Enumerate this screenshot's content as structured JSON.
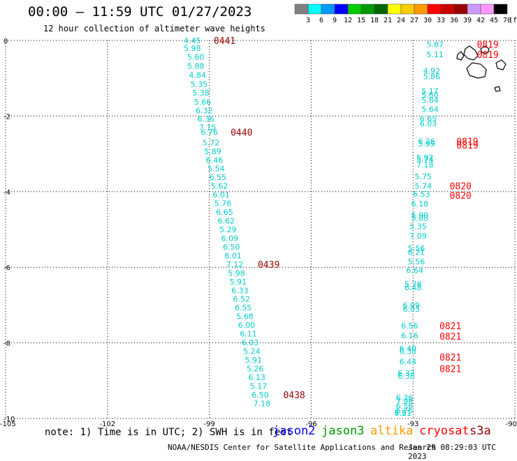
{
  "title": "00:00 – 11:59 UTC 01/27/2023",
  "subtitle": "12 hour collection of altimeter wave heights",
  "colorbar": {
    "colors": [
      "#808080",
      "#00ffff",
      "#0099ff",
      "#0000ff",
      "#00cc00",
      "#009900",
      "#006600",
      "#ffff00",
      "#ffcc00",
      "#ff9900",
      "#ff0000",
      "#cc0000",
      "#990000",
      "#cc99ff",
      "#ff99ff",
      "#000000"
    ],
    "labels": [
      "3",
      "6",
      "9",
      "12",
      "15",
      "18",
      "21",
      "24",
      "27",
      "30",
      "33",
      "36",
      "39",
      "42",
      "45",
      "70",
      "(ft)"
    ]
  },
  "legend": {
    "note": "note: 1) Time is in UTC; 2) SWH is in feet",
    "satellites": [
      {
        "name": "jason2",
        "color": "#0000ff"
      },
      {
        "name": "jason3",
        "color": "#009900"
      },
      {
        "name": "altika",
        "color": "#ff9900"
      },
      {
        "name": "cryosat",
        "color": "#ff0000"
      },
      {
        "name": "s3a",
        "color": "#990000"
      }
    ]
  },
  "credit": "NOAA/NESDIS Center for Satellite Applications and Research",
  "timestamp": "Jan 29 08:29:03 UTC 2023",
  "chart_data": {
    "type": "scatter",
    "xlim": [
      -105,
      -90
    ],
    "ylim": [
      -10,
      0
    ],
    "xticks": [
      "-105",
      "-102",
      "-99",
      "-96",
      "-93",
      "-90"
    ],
    "yticks": [
      "0",
      "-2",
      "-4",
      "-6",
      "-8",
      "-10"
    ],
    "grid": true,
    "value_color": "#00cccc",
    "tracks": [
      {
        "name": "west",
        "points": [
          {
            "x": -99.5,
            "y": 0.0,
            "v": "4.45"
          },
          {
            "x": -99.5,
            "y": -0.2,
            "v": "5.98"
          },
          {
            "x": -99.4,
            "y": -0.43,
            "v": "5.60"
          },
          {
            "x": -99.4,
            "y": -0.67,
            "v": "5.88"
          },
          {
            "x": -99.35,
            "y": -0.91,
            "v": "4.84"
          },
          {
            "x": -99.3,
            "y": -1.15,
            "v": "5.35"
          },
          {
            "x": -99.25,
            "y": -1.38,
            "v": "5.38"
          },
          {
            "x": -99.2,
            "y": -1.62,
            "v": "5.66"
          },
          {
            "x": -99.15,
            "y": -1.85,
            "v": "6.32"
          },
          {
            "x": -99.1,
            "y": -2.08,
            "v": "6.36"
          },
          {
            "x": -99.05,
            "y": -2.3,
            "v": "7.15"
          },
          {
            "x": -99.0,
            "y": -2.43,
            "v": "6.76"
          },
          {
            "x": -98.95,
            "y": -2.7,
            "v": "5.72"
          },
          {
            "x": -98.9,
            "y": -2.93,
            "v": "5.89"
          },
          {
            "x": -98.85,
            "y": -3.16,
            "v": "6.46"
          },
          {
            "x": -98.8,
            "y": -3.39,
            "v": "5.54"
          },
          {
            "x": -98.75,
            "y": -3.62,
            "v": "6.55"
          },
          {
            "x": -98.7,
            "y": -3.85,
            "v": "5.62"
          },
          {
            "x": -98.65,
            "y": -4.08,
            "v": "6.01"
          },
          {
            "x": -98.6,
            "y": -4.31,
            "v": "5.76"
          },
          {
            "x": -98.55,
            "y": -4.54,
            "v": "6.65"
          },
          {
            "x": -98.5,
            "y": -4.77,
            "v": "6.62"
          },
          {
            "x": -98.45,
            "y": -5.0,
            "v": "5.29"
          },
          {
            "x": -98.4,
            "y": -5.23,
            "v": "6.09"
          },
          {
            "x": -98.35,
            "y": -5.46,
            "v": "6.50"
          },
          {
            "x": -98.3,
            "y": -5.69,
            "v": "6.01"
          },
          {
            "x": -98.25,
            "y": -5.92,
            "v": "7.12"
          },
          {
            "x": -98.2,
            "y": -6.15,
            "v": "5.98"
          },
          {
            "x": -98.15,
            "y": -6.38,
            "v": "5.91"
          },
          {
            "x": -98.1,
            "y": -6.61,
            "v": "6.33"
          },
          {
            "x": -98.05,
            "y": -6.84,
            "v": "6.52"
          },
          {
            "x": -98.0,
            "y": -7.07,
            "v": "6.55"
          },
          {
            "x": -97.95,
            "y": -7.3,
            "v": "5.68"
          },
          {
            "x": -97.9,
            "y": -7.53,
            "v": "6.00"
          },
          {
            "x": -97.85,
            "y": -7.76,
            "v": "6.11"
          },
          {
            "x": -97.8,
            "y": -7.99,
            "v": "6.03"
          },
          {
            "x": -97.75,
            "y": -8.22,
            "v": "5.24"
          },
          {
            "x": -97.7,
            "y": -8.45,
            "v": "5.91"
          },
          {
            "x": -97.65,
            "y": -8.68,
            "v": "5.26"
          },
          {
            "x": -97.6,
            "y": -8.91,
            "v": "6.13"
          },
          {
            "x": -97.55,
            "y": -9.14,
            "v": "5.17"
          },
          {
            "x": -97.5,
            "y": -9.37,
            "v": "6.50"
          },
          {
            "x": -97.45,
            "y": -9.6,
            "v": "7.18"
          }
        ],
        "times": [
          {
            "x": -98.55,
            "y": 0.0,
            "t": "0441",
            "color": "#990000"
          },
          {
            "x": -98.05,
            "y": -2.43,
            "t": "0440",
            "color": "#990000"
          },
          {
            "x": -97.25,
            "y": -5.92,
            "t": "0439",
            "color": "#990000"
          },
          {
            "x": -96.5,
            "y": -9.37,
            "t": "0438",
            "color": "#990000"
          }
        ]
      },
      {
        "name": "east",
        "points": [
          {
            "x": -92.35,
            "y": -0.1,
            "v": "5.87"
          },
          {
            "x": -92.35,
            "y": -0.37,
            "v": "5.11"
          },
          {
            "x": -92.45,
            "y": -0.8,
            "v": "4.92"
          },
          {
            "x": -92.45,
            "y": -0.95,
            "v": "5.86"
          },
          {
            "x": -92.5,
            "y": -1.34,
            "v": "5.17"
          },
          {
            "x": -92.5,
            "y": -1.44,
            "v": "5.60"
          },
          {
            "x": -92.5,
            "y": -1.58,
            "v": "5.84"
          },
          {
            "x": -92.5,
            "y": -1.82,
            "v": "5.64"
          },
          {
            "x": -92.55,
            "y": -2.07,
            "v": "6.65"
          },
          {
            "x": -92.55,
            "y": -2.2,
            "v": "6.03"
          },
          {
            "x": -92.6,
            "y": -2.67,
            "v": "6.26"
          },
          {
            "x": -92.6,
            "y": -2.73,
            "v": "5.99"
          },
          {
            "x": -92.65,
            "y": -3.1,
            "v": "5.92"
          },
          {
            "x": -92.65,
            "y": -3.15,
            "v": "5.74"
          },
          {
            "x": -92.65,
            "y": -3.28,
            "v": "7.18"
          },
          {
            "x": -92.7,
            "y": -3.6,
            "v": "5.75"
          },
          {
            "x": -92.7,
            "y": -3.85,
            "v": "5.74"
          },
          {
            "x": -92.75,
            "y": -4.06,
            "v": "6.53"
          },
          {
            "x": -92.8,
            "y": -4.32,
            "v": "6.18"
          },
          {
            "x": -92.8,
            "y": -4.62,
            "v": "5.90"
          },
          {
            "x": -92.8,
            "y": -4.7,
            "v": "5.88"
          },
          {
            "x": -92.85,
            "y": -4.92,
            "v": "5.35"
          },
          {
            "x": -92.85,
            "y": -5.17,
            "v": "7.09"
          },
          {
            "x": -92.9,
            "y": -5.5,
            "v": "5.56"
          },
          {
            "x": -92.9,
            "y": -5.6,
            "v": "6.21"
          },
          {
            "x": -92.9,
            "y": -5.85,
            "v": "5.56"
          },
          {
            "x": -92.95,
            "y": -6.08,
            "v": "6.64"
          },
          {
            "x": -93.0,
            "y": -6.45,
            "v": "5.78"
          },
          {
            "x": -93.0,
            "y": -6.53,
            "v": "6.48"
          },
          {
            "x": -93.05,
            "y": -7.0,
            "v": "6.09"
          },
          {
            "x": -93.05,
            "y": -7.1,
            "v": "6.03"
          },
          {
            "x": -93.1,
            "y": -7.55,
            "v": "6.56"
          },
          {
            "x": -93.1,
            "y": -7.8,
            "v": "6.16"
          },
          {
            "x": -93.15,
            "y": -8.15,
            "v": "6.40"
          },
          {
            "x": -93.15,
            "y": -8.22,
            "v": "6.38"
          },
          {
            "x": -93.15,
            "y": -8.5,
            "v": "6.44"
          },
          {
            "x": -93.2,
            "y": -8.8,
            "v": "6.33"
          },
          {
            "x": -93.2,
            "y": -8.87,
            "v": "6.38"
          },
          {
            "x": -93.25,
            "y": -9.45,
            "v": "6.36"
          },
          {
            "x": -93.25,
            "y": -9.55,
            "v": "7.98"
          },
          {
            "x": -93.25,
            "y": -9.67,
            "v": "6.56"
          },
          {
            "x": -93.25,
            "y": -9.79,
            "v": "6.75"
          },
          {
            "x": -93.3,
            "y": -10.12,
            "v": "6.51"
          },
          {
            "x": -93.3,
            "y": -10.21,
            "v": "7.21"
          }
        ],
        "times": [
          {
            "x": -90.8,
            "y": -0.1,
            "t": "0819",
            "color": "#ff0000"
          },
          {
            "x": -90.8,
            "y": -0.37,
            "t": "0819",
            "color": "#ff0000"
          },
          {
            "x": -91.4,
            "y": -2.67,
            "t": "0819",
            "color": "#ff0000"
          },
          {
            "x": -91.4,
            "y": -2.77,
            "t": "0819",
            "color": "#ff0000"
          },
          {
            "x": -91.6,
            "y": -3.85,
            "t": "0820",
            "color": "#ff0000"
          },
          {
            "x": -91.6,
            "y": -4.1,
            "t": "0820",
            "color": "#ff0000"
          },
          {
            "x": -91.9,
            "y": -7.55,
            "t": "0821",
            "color": "#ff0000"
          },
          {
            "x": -91.9,
            "y": -7.82,
            "t": "0821",
            "color": "#ff0000"
          },
          {
            "x": -91.9,
            "y": -8.38,
            "t": "0821",
            "color": "#ff0000"
          },
          {
            "x": -91.9,
            "y": -8.68,
            "t": "0821",
            "color": "#ff0000"
          }
        ]
      }
    ]
  }
}
